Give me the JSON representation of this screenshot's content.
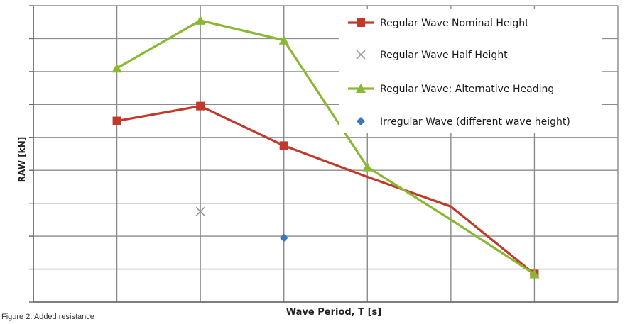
{
  "caption": "Figure 2: Added resistance",
  "chart_data": {
    "type": "line",
    "xlabel": "Wave Period, T [s]",
    "ylabel": "RAW [kN]",
    "grid": true,
    "legend_position": "top-right",
    "ylim": [
      0,
      9
    ],
    "x_gridlines": [
      0,
      1,
      2,
      3,
      4,
      5,
      6,
      7
    ],
    "series": [
      {
        "name": "Regular Wave Nominal  Height",
        "style": "line-square",
        "color": "#c0392b",
        "points": [
          [
            1,
            5.5
          ],
          [
            2,
            5.95
          ],
          [
            3,
            4.75
          ],
          [
            4,
            3.8
          ],
          [
            5,
            2.9
          ],
          [
            6,
            0.85
          ]
        ]
      },
      {
        "name": "Regular Wave Half Height",
        "style": "x-marker",
        "color": "#999999",
        "points": [
          [
            2,
            2.75
          ]
        ]
      },
      {
        "name": "Regular Wave; Alternative Heading",
        "style": "line-triangle",
        "color": "#8ab833",
        "points": [
          [
            1,
            7.1
          ],
          [
            2,
            8.55
          ],
          [
            3,
            7.95
          ],
          [
            4,
            4.1
          ],
          [
            5,
            2.5
          ],
          [
            6,
            0.85
          ]
        ]
      },
      {
        "name": "Irregular Wave (different wave height)",
        "style": "diamond-marker",
        "color": "#3b78c2",
        "points": [
          [
            3,
            1.95
          ]
        ]
      }
    ]
  }
}
